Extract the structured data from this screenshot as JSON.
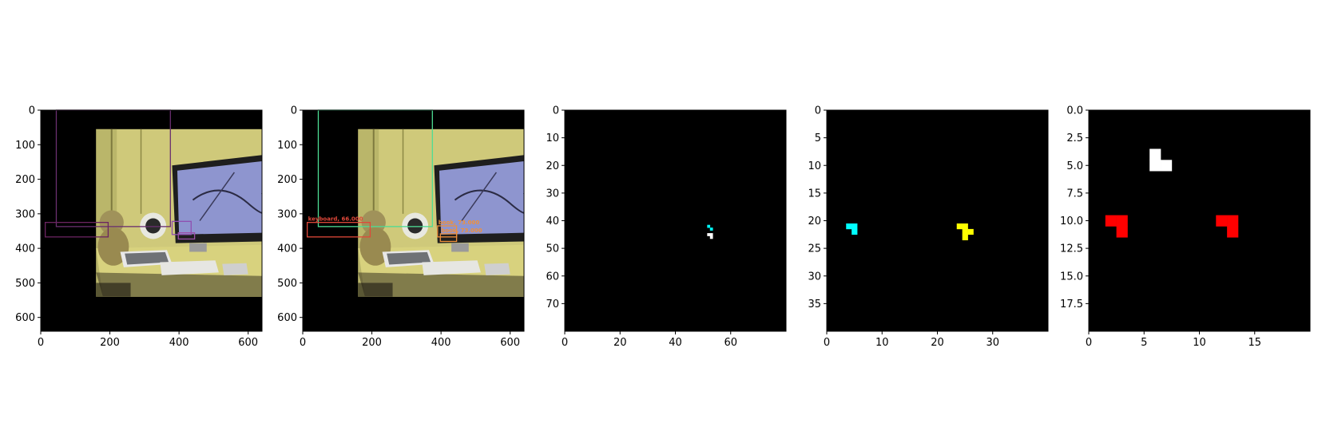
{
  "chart_data": [
    {
      "type": "image",
      "content": "photo-desk-detections",
      "xlim": [
        0,
        640
      ],
      "ylim": [
        640,
        0
      ],
      "xticks": [
        0,
        200,
        400,
        600
      ],
      "yticks": [
        0,
        100,
        200,
        300,
        400,
        500,
        600
      ],
      "boxes": [
        {
          "x0": 45,
          "y0": 0,
          "x1": 375,
          "y1": 337,
          "color": "#6a2f6f"
        },
        {
          "x0": 13,
          "y0": 325,
          "x1": 195,
          "y1": 367,
          "color": "#6b2461"
        },
        {
          "x0": 380,
          "y0": 322,
          "x1": 435,
          "y1": 360,
          "color": "#8f4fb0"
        },
        {
          "x0": 398,
          "y0": 355,
          "x1": 445,
          "y1": 373,
          "color": "#9b4fa8"
        }
      ]
    },
    {
      "type": "image",
      "content": "photo-desk-detections",
      "xlim": [
        0,
        640
      ],
      "ylim": [
        640,
        0
      ],
      "xticks": [
        0,
        200,
        400,
        600
      ],
      "yticks": [
        0,
        100,
        200,
        300,
        400,
        500,
        600
      ],
      "boxes": [
        {
          "x0": 45,
          "y0": 0,
          "x1": 375,
          "y1": 337,
          "color": "#4ddc94",
          "label": ""
        },
        {
          "x0": 13,
          "y0": 325,
          "x1": 195,
          "y1": 367,
          "color": "#e0483a",
          "label": "keyboard, 66.000"
        },
        {
          "x0": 390,
          "y0": 335,
          "x1": 445,
          "y1": 367,
          "color": "#f0903a",
          "label": "book, 73.000"
        },
        {
          "x0": 398,
          "y0": 358,
          "x1": 445,
          "y1": 380,
          "color": "#f0903a",
          "label": "book, 73.000"
        }
      ]
    },
    {
      "type": "heatmap",
      "xlim": [
        0,
        80
      ],
      "ylim": [
        80,
        0
      ],
      "xticks": [
        0,
        20,
        40,
        60
      ],
      "yticks": [
        0,
        10,
        20,
        30,
        40,
        50,
        60,
        70
      ],
      "background": "#000000",
      "cells": [
        {
          "x": 52,
          "y": 42,
          "color": "#00ffff"
        },
        {
          "x": 53,
          "y": 43,
          "color": "#00ffff"
        },
        {
          "x": 52,
          "y": 45,
          "color": "#ffffff"
        },
        {
          "x": 53,
          "y": 45,
          "color": "#ffffff"
        },
        {
          "x": 53,
          "y": 46,
          "color": "#ffffff"
        }
      ]
    },
    {
      "type": "heatmap",
      "xlim": [
        0,
        40
      ],
      "ylim": [
        40,
        0
      ],
      "xticks": [
        0,
        10,
        20,
        30
      ],
      "yticks": [
        0,
        5,
        10,
        15,
        20,
        25,
        30,
        35
      ],
      "background": "#000000",
      "cells": [
        {
          "x": 4,
          "y": 21,
          "color": "#00ffff"
        },
        {
          "x": 5,
          "y": 21,
          "color": "#00ffff"
        },
        {
          "x": 5,
          "y": 22,
          "color": "#00ffff"
        },
        {
          "x": 24,
          "y": 21,
          "color": "#ffff00"
        },
        {
          "x": 25,
          "y": 21,
          "color": "#ffff00"
        },
        {
          "x": 25,
          "y": 22,
          "color": "#ffff00"
        },
        {
          "x": 26,
          "y": 22,
          "color": "#ffff00"
        },
        {
          "x": 25,
          "y": 23,
          "color": "#ffff00"
        }
      ]
    },
    {
      "type": "heatmap",
      "xlim": [
        0,
        20
      ],
      "ylim": [
        20,
        0
      ],
      "xticks": [
        0,
        5,
        10,
        15
      ],
      "yticks": [
        0.0,
        2.5,
        5.0,
        7.5,
        10.0,
        12.5,
        15.0,
        17.5
      ],
      "ytick_labels": [
        "0.0",
        "2.5",
        "5.0",
        "7.5",
        "10.0",
        "12.5",
        "15.0",
        "17.5"
      ],
      "background": "#000000",
      "cells": [
        {
          "x": 6,
          "y": 4,
          "color": "#ffffff"
        },
        {
          "x": 6,
          "y": 5,
          "color": "#ffffff"
        },
        {
          "x": 7,
          "y": 5,
          "color": "#ffffff"
        },
        {
          "x": 2,
          "y": 10,
          "color": "#ff0000"
        },
        {
          "x": 3,
          "y": 10,
          "color": "#ff0000"
        },
        {
          "x": 3,
          "y": 11,
          "color": "#ff0000"
        },
        {
          "x": 12,
          "y": 10,
          "color": "#ff0000"
        },
        {
          "x": 13,
          "y": 10,
          "color": "#ff0000"
        },
        {
          "x": 13,
          "y": 11,
          "color": "#ff0000"
        }
      ]
    }
  ]
}
